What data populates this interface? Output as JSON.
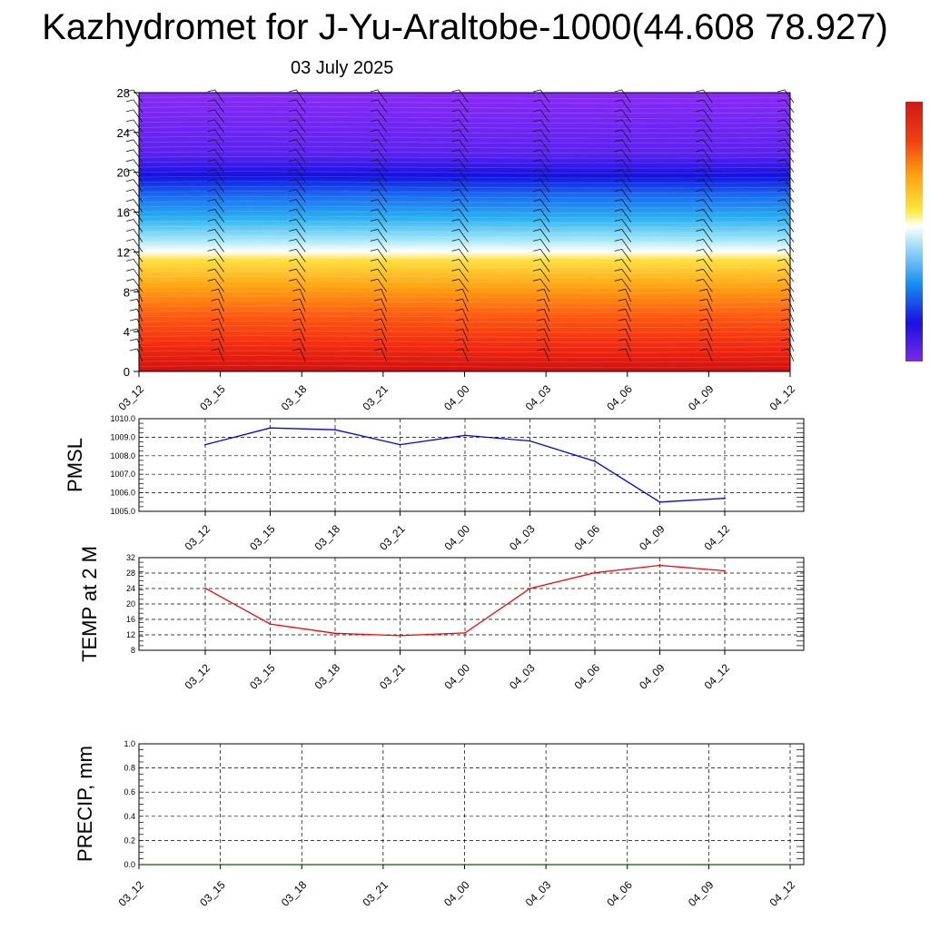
{
  "header": {
    "title": "Kazhydromet for J-Yu-Araltobe-1000(44.608 78.927)",
    "date": "03 July 2025"
  },
  "colors": {
    "pmsl_line": "#0000ff",
    "temp_line": "#ff0000",
    "precip_line": "#006400",
    "grid": "#000000"
  },
  "chart_data": [
    {
      "type": "heatmap",
      "title": "",
      "x_ticks": [
        "03_12",
        "03_15",
        "03_18",
        "03_21",
        "04_00",
        "04_03",
        "04_06",
        "04_09",
        "04_12"
      ],
      "y_ticks": [
        0,
        4,
        8,
        12,
        16,
        20,
        24,
        28
      ],
      "ylim": [
        0,
        28
      ],
      "colormap": "purple-blue-cyan-white-yellow-orange-red",
      "overlay": "wind barbs",
      "colorbar": "right, unlabeled"
    },
    {
      "type": "line",
      "ylabel": "PMSL",
      "x": [
        "03_12",
        "03_15",
        "03_18",
        "03_21",
        "04_00",
        "04_03",
        "04_06",
        "04_09",
        "04_12"
      ],
      "series": [
        {
          "values": [
            1008.6,
            1009.5,
            1009.4,
            1008.6,
            1009.1,
            1008.8,
            1007.7,
            1005.5,
            1005.7
          ]
        }
      ],
      "y_ticks": [
        "1005.0",
        "1006.0",
        "1007.0",
        "1008.0",
        "1009.0",
        "1010.0"
      ],
      "ylim": [
        1005,
        1010
      ],
      "grid": true
    },
    {
      "type": "line",
      "ylabel": "TEMP at 2 M",
      "x": [
        "03_12",
        "03_15",
        "03_18",
        "03_21",
        "04_00",
        "04_03",
        "04_06",
        "04_09",
        "04_12"
      ],
      "series": [
        {
          "values": [
            24.1,
            14.8,
            12.4,
            11.8,
            12.5,
            24.0,
            28.1,
            30.0,
            28.6
          ]
        }
      ],
      "y_ticks": [
        "8",
        "12",
        "16",
        "20",
        "24",
        "28",
        "32"
      ],
      "ylim": [
        8,
        32
      ],
      "grid": true
    },
    {
      "type": "line",
      "ylabel": "PRECIP, mm",
      "x": [
        "03_12",
        "03_15",
        "03_18",
        "03_21",
        "04_00",
        "04_03",
        "04_06",
        "04_09",
        "04_12"
      ],
      "series": [
        {
          "values": [
            0,
            0,
            0,
            0,
            0,
            0,
            0,
            0,
            0
          ]
        }
      ],
      "y_ticks": [
        "0.0",
        "0.2",
        "0.4",
        "0.6",
        "0.8",
        "1.0"
      ],
      "ylim": [
        0,
        1
      ],
      "grid": true
    }
  ]
}
